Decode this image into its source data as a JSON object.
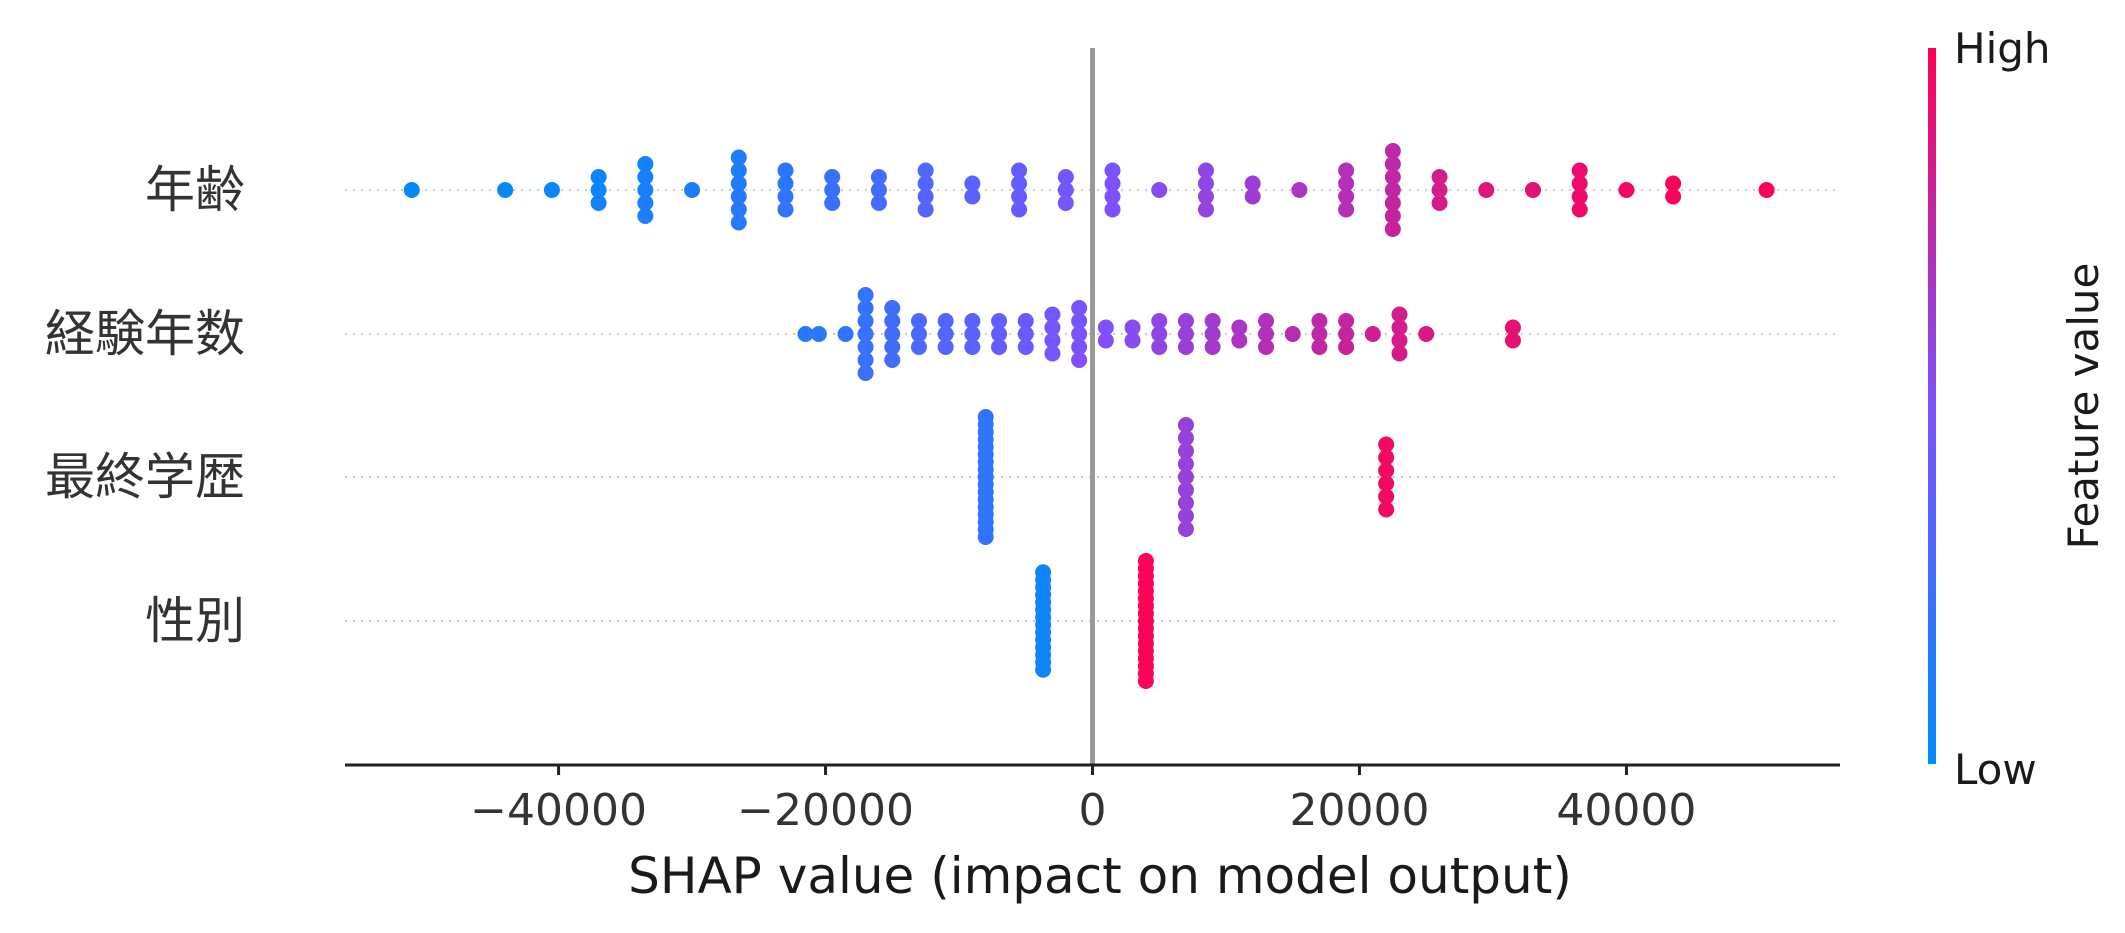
{
  "chart_data": {
    "type": "scatter",
    "subtype": "shap-beeswarm",
    "xlabel": "SHAP value (impact on model output)",
    "xlim": [
      -56000,
      56000
    ],
    "xticks": [
      -40000,
      -20000,
      0,
      20000,
      40000
    ],
    "xtick_labels": [
      "−40000",
      "−20000",
      "0",
      "20000",
      "40000"
    ],
    "colorbar": {
      "title": "Feature value",
      "high_label": "High",
      "low_label": "Low",
      "low_color": "#008bfb",
      "high_color": "#ff0052"
    },
    "features": [
      {
        "name": "年齢",
        "points": [
          [
            -51000,
            0.0,
            1
          ],
          [
            -44000,
            0.0,
            2
          ],
          [
            -40500,
            0.0,
            2
          ],
          [
            -37000,
            0.0,
            3
          ],
          [
            -37000,
            0.0,
            4
          ],
          [
            -37000,
            0.0,
            4
          ],
          [
            -33500,
            0.0,
            5
          ],
          [
            -33500,
            0.0,
            6
          ],
          [
            -33500,
            0.0,
            6
          ],
          [
            -33500,
            0.0,
            7
          ],
          [
            -33500,
            0.0,
            7
          ],
          [
            -30000,
            0.0,
            7
          ],
          [
            -26500,
            0.0,
            8
          ],
          [
            -26500,
            0.0,
            8
          ],
          [
            -26500,
            0.0,
            9
          ],
          [
            -26500,
            0.0,
            9
          ],
          [
            -26500,
            0.0,
            10
          ],
          [
            -26500,
            0.0,
            10
          ],
          [
            -23000,
            0.0,
            11
          ],
          [
            -23000,
            0.0,
            11
          ],
          [
            -23000,
            0.0,
            12
          ],
          [
            -23000,
            0.0,
            12
          ],
          [
            -19500,
            0.0,
            14
          ],
          [
            -19500,
            0.0,
            14
          ],
          [
            -19500,
            0.0,
            15
          ],
          [
            -16000,
            0.0,
            17
          ],
          [
            -16000,
            0.0,
            17
          ],
          [
            -16000,
            0.0,
            18
          ],
          [
            -12500,
            0.0,
            20
          ],
          [
            -12500,
            0.0,
            20
          ],
          [
            -12500,
            0.0,
            21
          ],
          [
            -12500,
            0.0,
            21
          ],
          [
            -9000,
            0.0,
            23
          ],
          [
            -9000,
            0.0,
            23
          ],
          [
            -5500,
            0.0,
            25
          ],
          [
            -5500,
            0.0,
            25
          ],
          [
            -5500,
            0.0,
            26
          ],
          [
            -5500,
            0.0,
            26
          ],
          [
            -2000,
            0.0,
            28
          ],
          [
            -2000,
            0.0,
            28
          ],
          [
            -2000,
            0.0,
            29
          ],
          [
            1500,
            0.0,
            31
          ],
          [
            1500,
            0.0,
            31
          ],
          [
            1500,
            0.0,
            32
          ],
          [
            1500,
            0.0,
            32
          ],
          [
            5000,
            0.0,
            34
          ],
          [
            8500,
            0.0,
            36
          ],
          [
            8500,
            0.0,
            36
          ],
          [
            8500,
            0.0,
            37
          ],
          [
            8500,
            0.0,
            37
          ],
          [
            12000,
            0.0,
            39
          ],
          [
            12000,
            0.0,
            40
          ],
          [
            15500,
            0.0,
            42
          ],
          [
            19000,
            0.0,
            44
          ],
          [
            19000,
            0.0,
            44
          ],
          [
            19000,
            0.0,
            45
          ],
          [
            19000,
            0.0,
            45
          ],
          [
            22500,
            0.0,
            47
          ],
          [
            22500,
            0.0,
            47
          ],
          [
            22500,
            0.0,
            48
          ],
          [
            22500,
            0.0,
            48
          ],
          [
            22500,
            0.0,
            49
          ],
          [
            22500,
            0.0,
            49
          ],
          [
            22500,
            0.0,
            50
          ],
          [
            26000,
            0.0,
            52
          ],
          [
            26000,
            0.0,
            52
          ],
          [
            26000,
            0.0,
            53
          ],
          [
            29500,
            0.0,
            55
          ],
          [
            33000,
            0.0,
            57
          ],
          [
            36500,
            0.0,
            58
          ],
          [
            36500,
            0.0,
            58
          ],
          [
            36500,
            0.0,
            59
          ],
          [
            36500,
            0.0,
            59
          ],
          [
            40000,
            0.0,
            60
          ],
          [
            43500,
            0.0,
            61
          ],
          [
            43500,
            0.0,
            61
          ],
          [
            50500,
            0.0,
            63
          ]
        ]
      },
      {
        "name": "経験年数",
        "points": [
          [
            -21500,
            0.0,
            10
          ],
          [
            -20500,
            0.0,
            11
          ],
          [
            -18500,
            0.0,
            12
          ],
          [
            -17000,
            0.0,
            13
          ],
          [
            -17000,
            0.0,
            13
          ],
          [
            -17000,
            0.0,
            13
          ],
          [
            -17000,
            0.0,
            14
          ],
          [
            -17000,
            0.0,
            14
          ],
          [
            -17000,
            0.0,
            14
          ],
          [
            -17000,
            0.0,
            15
          ],
          [
            -15000,
            0.0,
            16
          ],
          [
            -15000,
            0.0,
            16
          ],
          [
            -15000,
            0.0,
            17
          ],
          [
            -15000,
            0.0,
            17
          ],
          [
            -15000,
            0.0,
            17
          ],
          [
            -13000,
            0.0,
            19
          ],
          [
            -13000,
            0.0,
            19
          ],
          [
            -13000,
            0.0,
            20
          ],
          [
            -11000,
            0.0,
            21
          ],
          [
            -11000,
            0.0,
            21
          ],
          [
            -11000,
            0.0,
            22
          ],
          [
            -9000,
            0.0,
            23
          ],
          [
            -9000,
            0.0,
            23
          ],
          [
            -9000,
            0.0,
            24
          ],
          [
            -7000,
            0.0,
            25
          ],
          [
            -7000,
            0.0,
            25
          ],
          [
            -7000,
            0.0,
            26
          ],
          [
            -5000,
            0.0,
            27
          ],
          [
            -5000,
            0.0,
            27
          ],
          [
            -5000,
            0.0,
            28
          ],
          [
            -3000,
            0.0,
            28
          ],
          [
            -3000,
            0.0,
            29
          ],
          [
            -3000,
            0.0,
            29
          ],
          [
            -3000,
            0.0,
            30
          ],
          [
            -1000,
            0.0,
            30
          ],
          [
            -1000,
            0.0,
            30
          ],
          [
            -1000,
            0.0,
            31
          ],
          [
            -1000,
            0.0,
            31
          ],
          [
            -1000,
            0.0,
            32
          ],
          [
            1000,
            0.0,
            32
          ],
          [
            1000,
            0.0,
            33
          ],
          [
            3000,
            0.0,
            34
          ],
          [
            3000,
            0.0,
            34
          ],
          [
            5000,
            0.0,
            36
          ],
          [
            5000,
            0.0,
            36
          ],
          [
            5000,
            0.0,
            37
          ],
          [
            7000,
            0.0,
            38
          ],
          [
            7000,
            0.0,
            38
          ],
          [
            7000,
            0.0,
            39
          ],
          [
            9000,
            0.0,
            40
          ],
          [
            9000,
            0.0,
            40
          ],
          [
            9000,
            0.0,
            41
          ],
          [
            11000,
            0.0,
            42
          ],
          [
            11000,
            0.0,
            43
          ],
          [
            13000,
            0.0,
            44
          ],
          [
            13000,
            0.0,
            44
          ],
          [
            13000,
            0.0,
            45
          ],
          [
            15000,
            0.0,
            46
          ],
          [
            17000,
            0.0,
            47
          ],
          [
            17000,
            0.0,
            47
          ],
          [
            17000,
            0.0,
            48
          ],
          [
            19000,
            0.0,
            49
          ],
          [
            19000,
            0.0,
            49
          ],
          [
            19000,
            0.0,
            50
          ],
          [
            21000,
            0.0,
            51
          ],
          [
            23000,
            0.0,
            52
          ],
          [
            23000,
            0.0,
            52
          ],
          [
            23000,
            0.0,
            53
          ],
          [
            23000,
            0.0,
            53
          ],
          [
            25000,
            0.0,
            54
          ],
          [
            31500,
            0.0,
            57
          ],
          [
            31500,
            0.0,
            57
          ]
        ]
      },
      {
        "name": "最終学歴",
        "points": [
          [
            -8000,
            0.0,
            12
          ],
          [
            -8000,
            0.0,
            12
          ],
          [
            -8000,
            0.0,
            12
          ],
          [
            -8000,
            0.0,
            12
          ],
          [
            -8000,
            0.0,
            12
          ],
          [
            -8000,
            0.0,
            12
          ],
          [
            -8000,
            0.0,
            12
          ],
          [
            -8000,
            0.0,
            12
          ],
          [
            -8000,
            0.0,
            12
          ],
          [
            -8000,
            0.0,
            12
          ],
          [
            -8000,
            0.0,
            12
          ],
          [
            -8000,
            0.0,
            12
          ],
          [
            -8000,
            0.0,
            12
          ],
          [
            -8000,
            0.0,
            12
          ],
          [
            -8000,
            0.0,
            12
          ],
          [
            -8000,
            0.0,
            12
          ],
          [
            -8000,
            0.0,
            12
          ],
          [
            7000,
            0.0,
            38
          ],
          [
            7000,
            0.0,
            38
          ],
          [
            7000,
            0.0,
            38
          ],
          [
            7000,
            0.0,
            38
          ],
          [
            7000,
            0.0,
            38
          ],
          [
            7000,
            0.0,
            38
          ],
          [
            7000,
            0.0,
            38
          ],
          [
            7000,
            0.0,
            38
          ],
          [
            7000,
            0.0,
            38
          ],
          [
            22000,
            0.0,
            60
          ],
          [
            22000,
            0.0,
            60
          ],
          [
            22000,
            0.0,
            60
          ],
          [
            22000,
            0.0,
            60
          ],
          [
            22000,
            0.0,
            60
          ],
          [
            22000,
            0.0,
            60
          ]
        ]
      },
      {
        "name": "性別",
        "points": [
          [
            -3700,
            0.0,
            4
          ],
          [
            -3700,
            0.0,
            4
          ],
          [
            -3700,
            0.0,
            4
          ],
          [
            -3700,
            0.0,
            4
          ],
          [
            -3700,
            0.0,
            4
          ],
          [
            -3700,
            0.0,
            4
          ],
          [
            -3700,
            0.0,
            4
          ],
          [
            -3700,
            0.0,
            4
          ],
          [
            -3700,
            0.0,
            4
          ],
          [
            -3700,
            0.0,
            4
          ],
          [
            -3700,
            0.0,
            4
          ],
          [
            -3700,
            0.0,
            4
          ],
          [
            -3700,
            0.0,
            4
          ],
          [
            -3700,
            0.0,
            4
          ],
          [
            4000,
            0.0,
            62
          ],
          [
            4000,
            0.0,
            62
          ],
          [
            4000,
            0.0,
            62
          ],
          [
            4000,
            0.0,
            62
          ],
          [
            4000,
            0.0,
            62
          ],
          [
            4000,
            0.0,
            62
          ],
          [
            4000,
            0.0,
            62
          ],
          [
            4000,
            0.0,
            62
          ],
          [
            4000,
            0.0,
            62
          ],
          [
            4000,
            0.0,
            62
          ],
          [
            4000,
            0.0,
            62
          ],
          [
            4000,
            0.0,
            62
          ],
          [
            4000,
            0.0,
            62
          ],
          [
            4000,
            0.0,
            62
          ],
          [
            4000,
            0.0,
            62
          ],
          [
            4000,
            0.0,
            62
          ],
          [
            4000,
            0.0,
            62
          ]
        ]
      }
    ],
    "point_format": "[shap_value, jitter, feature_value_rank_0_to_63]"
  }
}
